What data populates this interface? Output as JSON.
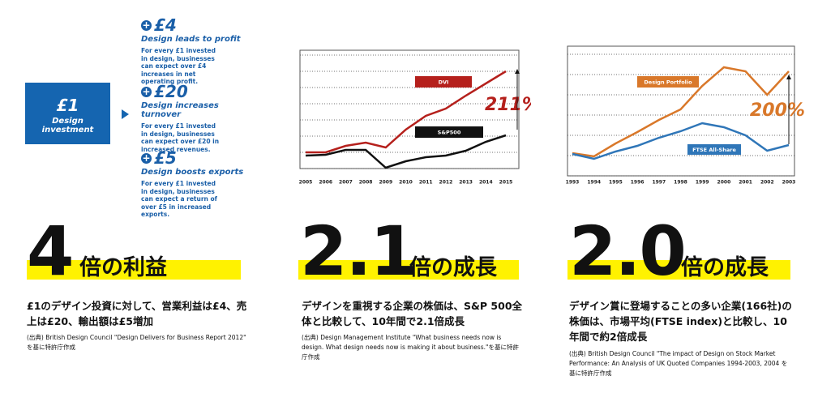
{
  "investment": {
    "amount": "£1",
    "label": "Design investment"
  },
  "returns": [
    {
      "amount": "£4",
      "title": "Design leads to profit",
      "text": "For every £1 invested in design, businesses can expect over £4 increases in net operating profit."
    },
    {
      "amount": "£20",
      "title": "Design increases turnover",
      "text": "For every £1 invested in design, businesses can expect over £20 in increased revenues."
    },
    {
      "amount": "£5",
      "title": "Design boosts exports",
      "text": "For every £1 invested in design, businesses can expect a return of over £5 in increased exports."
    }
  ],
  "chart_data": [
    {
      "type": "line",
      "categories": [
        "2005",
        "2006",
        "2007",
        "2008",
        "2009",
        "2010",
        "2011",
        "2012",
        "2013",
        "2014",
        "2015"
      ],
      "series": [
        {
          "name": "DVI",
          "color": "#b5201c",
          "values": [
            1.0,
            1.0,
            1.4,
            1.6,
            1.3,
            2.4,
            3.25,
            3.7,
            4.5,
            5.25,
            6.0
          ]
        },
        {
          "name": "S&P500",
          "color": "#111111",
          "values": [
            0.8,
            0.85,
            1.15,
            1.15,
            0.05,
            0.45,
            0.7,
            0.8,
            1.1,
            1.65,
            2.05
          ]
        }
      ],
      "ylim": [
        0,
        7.3
      ],
      "ygrid": [
        0,
        1,
        2,
        3,
        4,
        5,
        6,
        7
      ],
      "annotation": "211%",
      "annotation_color": "#b5201c"
    },
    {
      "type": "line",
      "categories": [
        "1993",
        "1994",
        "1995",
        "1996",
        "1997",
        "1998",
        "1999",
        "2000",
        "2001",
        "2002",
        "2003"
      ],
      "series": [
        {
          "name": "Design Portfolio",
          "color": "#d9782a",
          "values": [
            1.12,
            0.96,
            1.6,
            2.16,
            2.76,
            3.28,
            4.44,
            5.36,
            5.16,
            4.0,
            5.16
          ]
        },
        {
          "name": "FTSE All-Share",
          "color": "#2f76b8",
          "values": [
            1.08,
            0.84,
            1.2,
            1.48,
            1.88,
            2.2,
            2.6,
            2.4,
            2.0,
            1.24,
            1.52
          ]
        }
      ],
      "ylim": [
        0,
        6.4
      ],
      "ygrid": [
        0,
        1,
        2,
        3,
        4,
        5,
        6
      ],
      "annotation": "200%",
      "annotation_color": "#d9782a"
    }
  ],
  "highlights": [
    {
      "number": "4",
      "label": "倍の利益",
      "text": "£1のデザイン投資に対して、営業利益は£4、売上は£20、輸出額は£5増加",
      "source": "(出典) British Design Council \"Design Delivers for Business Report 2012\" を基に特許庁作成"
    },
    {
      "number": "2.1",
      "label": "倍の成長",
      "text": "デザインを重視する企業の株価は、S&P 500全体と比較して、10年間で2.1倍成長",
      "source": "(出典) Design Management Institute \"What business needs now is design. What design needs now is making it about business.\"を基に特許庁作成"
    },
    {
      "number": "2.0",
      "label": "倍の成長",
      "text": "デザイン賞に登場することの多い企業(166社)の株価は、市場平均(FTSE index)と比較し、10年間で約2倍成長",
      "source": "(出典) British Design Council \"The impact of Design on Stock Market Performance: An Analysis of UK Quoted Companies 1994-2003, 2004 を基に特許庁作成"
    }
  ]
}
